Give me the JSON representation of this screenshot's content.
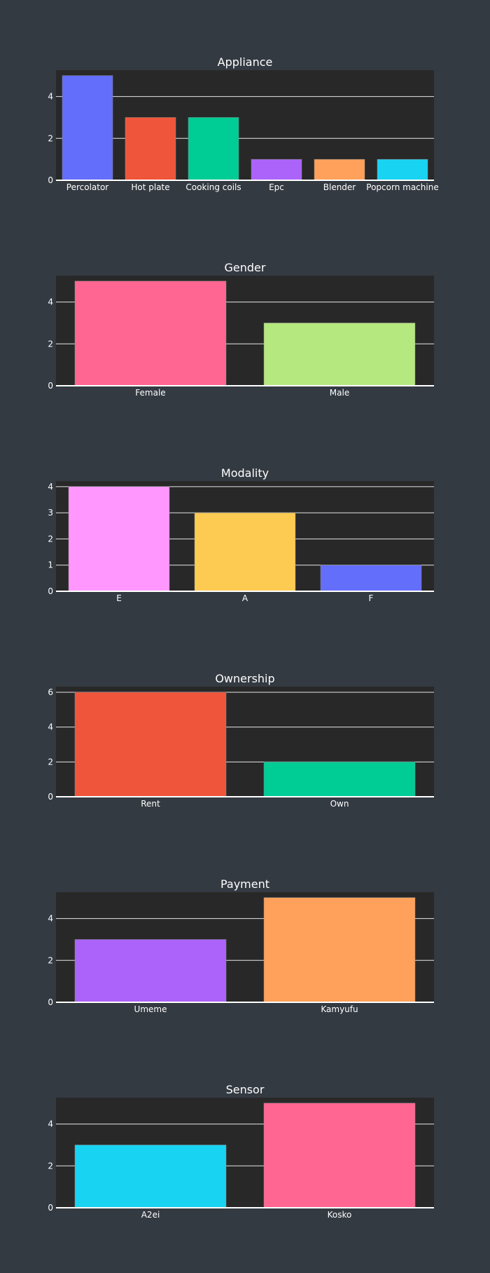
{
  "chart_data": [
    {
      "type": "bar",
      "title": "Appliance",
      "categories": [
        "Percolator",
        "Hot plate",
        "Cooking coils",
        "Epc",
        "Blender",
        "Popcorn machine"
      ],
      "values": [
        5,
        3,
        3,
        1,
        1,
        1
      ],
      "colors": [
        "#636efa",
        "#ef553b",
        "#00cc96",
        "#ab63fa",
        "#ffa15a",
        "#19d3f3"
      ],
      "ylim": [
        0,
        5.26
      ],
      "yticks": [
        0,
        2,
        4
      ],
      "grid": true
    },
    {
      "type": "bar",
      "title": "Gender",
      "categories": [
        "Female",
        "Male"
      ],
      "values": [
        5,
        3
      ],
      "colors": [
        "#ff6692",
        "#b6e880"
      ],
      "ylim": [
        0,
        5.26
      ],
      "yticks": [
        0,
        2,
        4
      ],
      "grid": true
    },
    {
      "type": "bar",
      "title": "Modality",
      "categories": [
        "E",
        "A",
        "F"
      ],
      "values": [
        4,
        3,
        1
      ],
      "colors": [
        "#ff97ff",
        "#fecb52",
        "#636efa"
      ],
      "ylim": [
        0,
        4.21
      ],
      "yticks": [
        0,
        1,
        2,
        3,
        4
      ],
      "grid": true
    },
    {
      "type": "bar",
      "title": "Ownership",
      "categories": [
        "Rent",
        "Own"
      ],
      "values": [
        6,
        2
      ],
      "colors": [
        "#ef553b",
        "#00cc96"
      ],
      "ylim": [
        0,
        6.32
      ],
      "yticks": [
        0,
        2,
        4,
        6
      ],
      "grid": true
    },
    {
      "type": "bar",
      "title": "Payment",
      "categories": [
        "Umeme",
        "Kamyufu"
      ],
      "values": [
        3,
        5
      ],
      "colors": [
        "#ab63fa",
        "#ffa15a"
      ],
      "ylim": [
        0,
        5.26
      ],
      "yticks": [
        0,
        2,
        4
      ],
      "grid": true
    },
    {
      "type": "bar",
      "title": "Sensor",
      "categories": [
        "A2ei",
        "Kosko"
      ],
      "values": [
        3,
        5
      ],
      "colors": [
        "#19d3f3",
        "#ff6692"
      ],
      "ylim": [
        0,
        5.26
      ],
      "yticks": [
        0,
        2,
        4
      ],
      "grid": true
    }
  ],
  "theme": {
    "page_bg": "#343a42",
    "plot_bg": "#282828",
    "grid_color": "#e5e5e5",
    "text_color": "#ffffff"
  }
}
